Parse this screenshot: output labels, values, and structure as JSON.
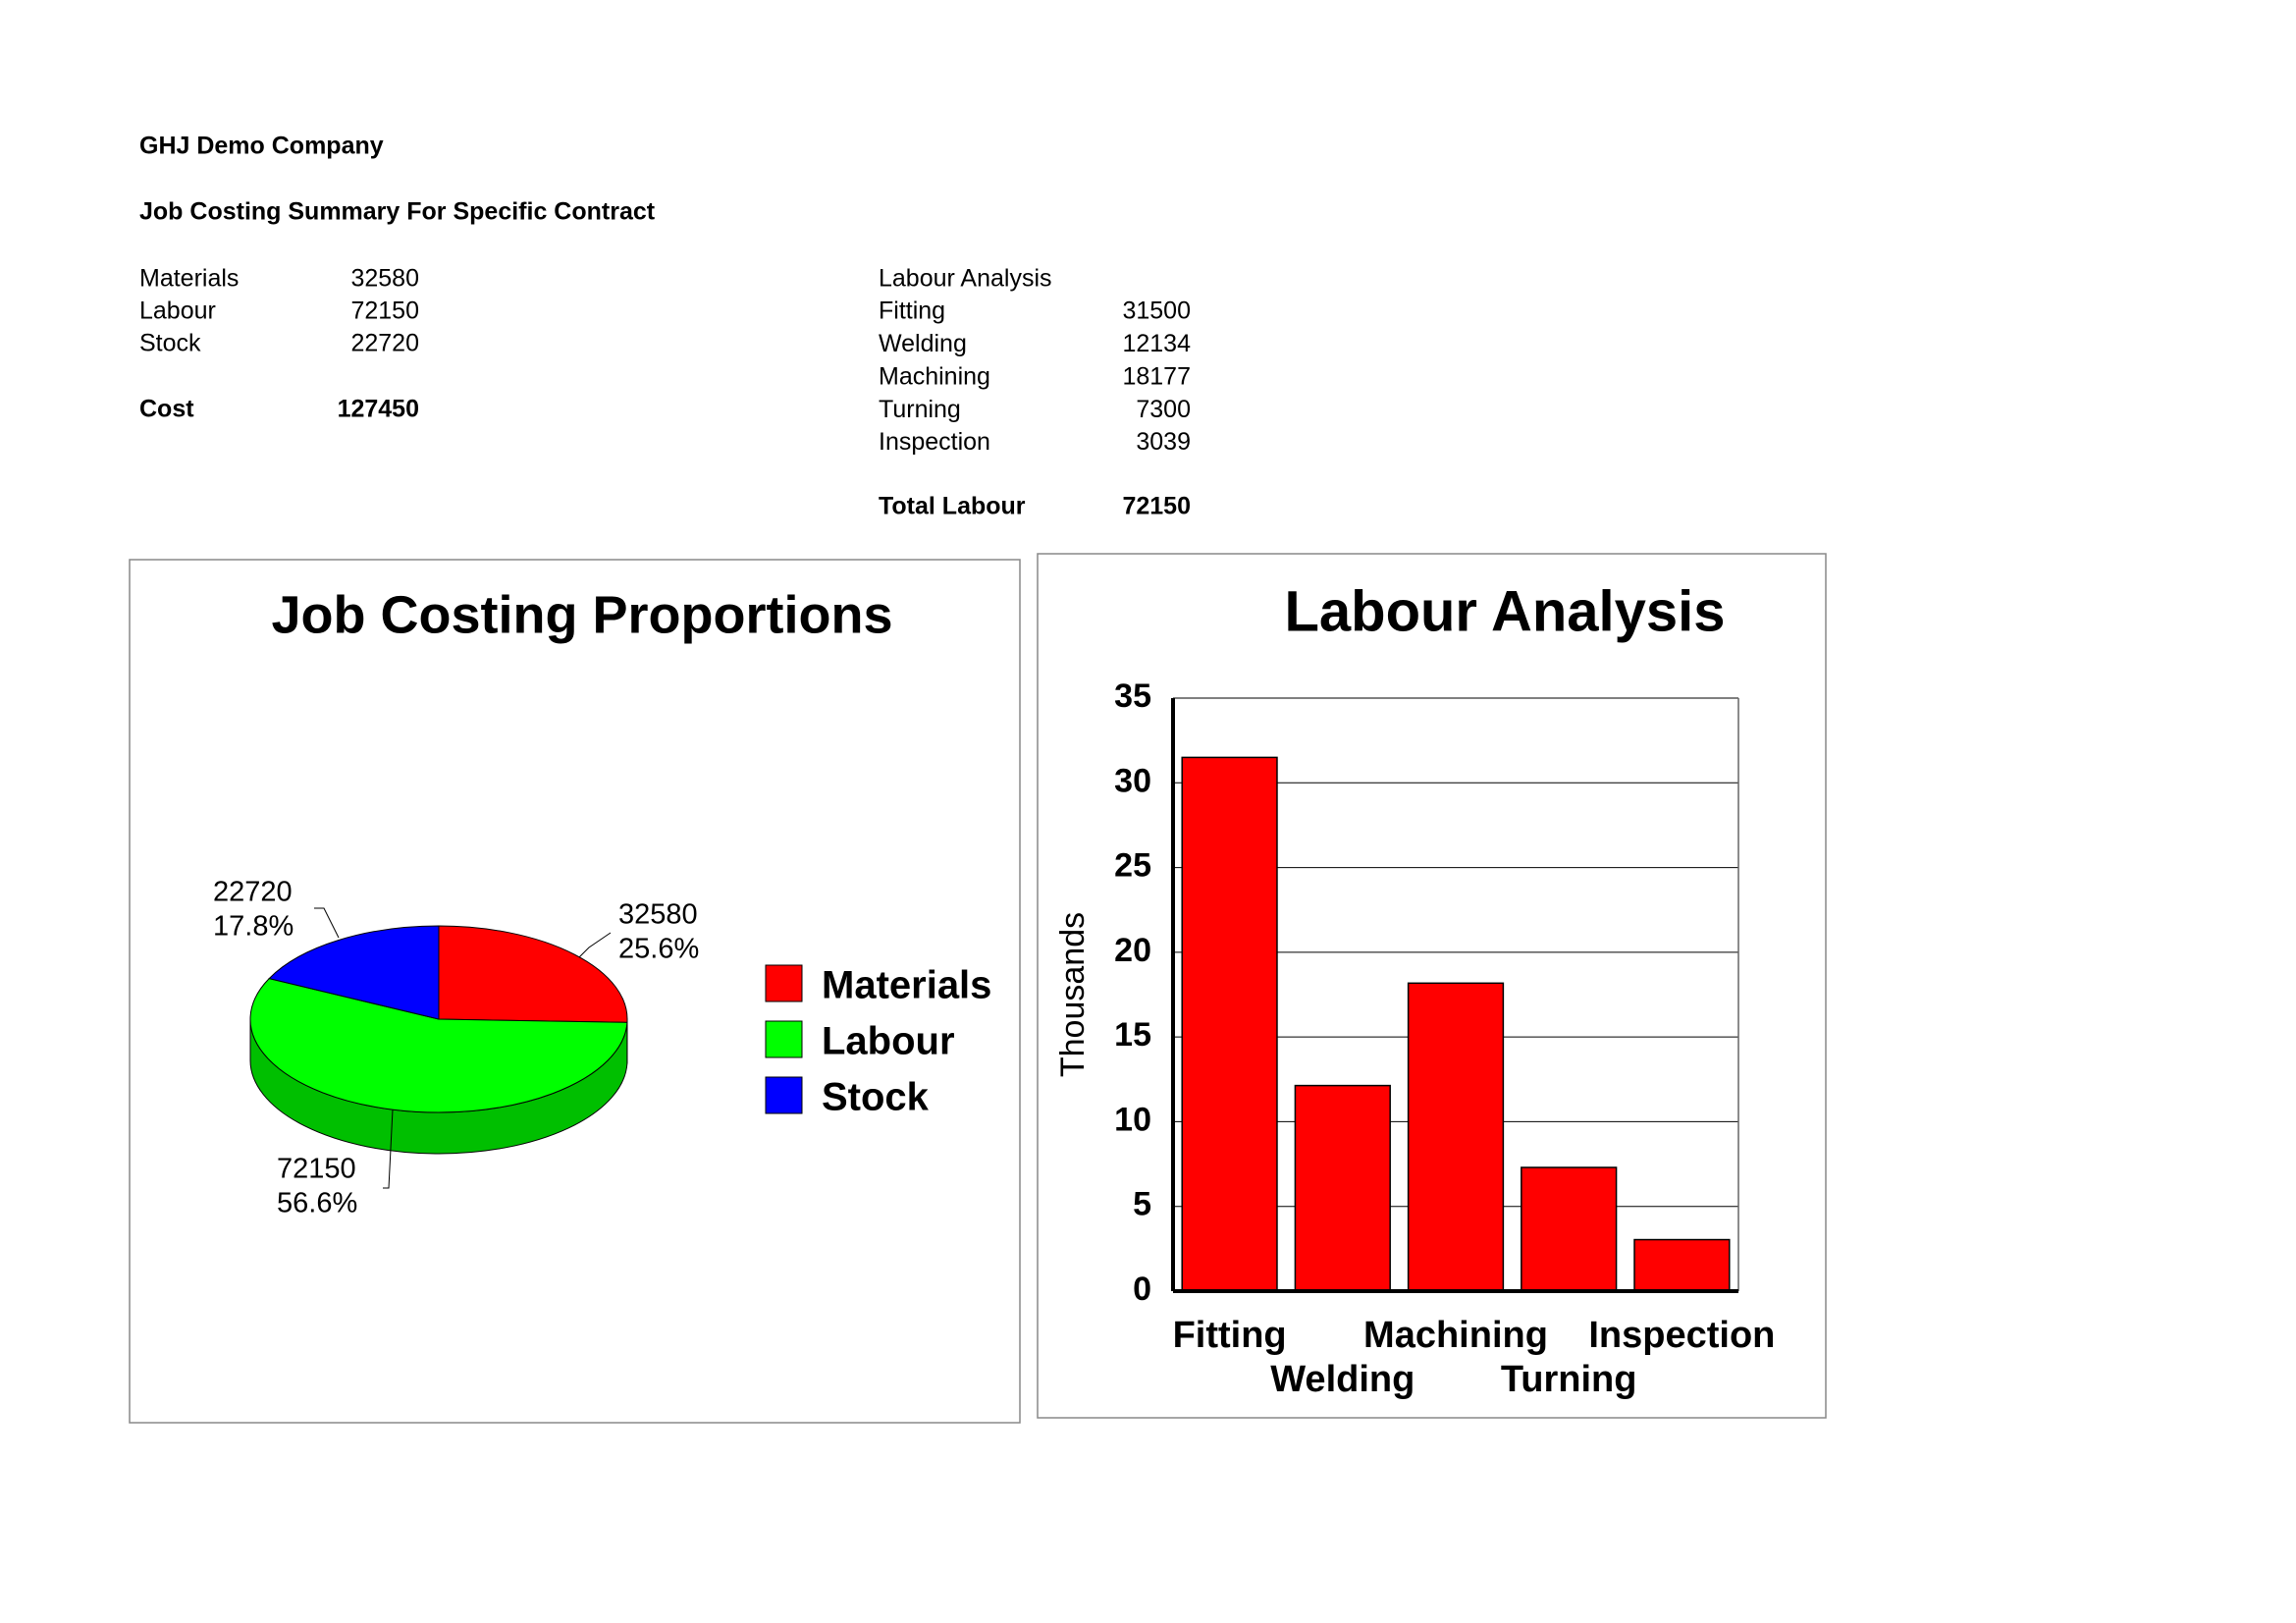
{
  "header": {
    "company": "GHJ Demo Company",
    "title": "Job Costing Summary For Specific Contract"
  },
  "cost_table": {
    "rows": [
      [
        "Materials",
        32580
      ],
      [
        "Labour",
        72150
      ],
      [
        "Stock",
        22720
      ]
    ],
    "total": [
      "Cost",
      127450
    ]
  },
  "labour_table": {
    "title": "Labour Analysis",
    "rows": [
      [
        "Fitting",
        31500
      ],
      [
        "Welding",
        12134
      ],
      [
        "Machining",
        18177
      ],
      [
        "Turning",
        7300
      ],
      [
        "Inspection",
        3039
      ]
    ],
    "total": [
      "Total Labour",
      72150
    ]
  },
  "chart_data": [
    {
      "type": "pie",
      "title": "Job Costing Proportions",
      "categories": [
        "Materials",
        "Labour",
        "Stock"
      ],
      "values": [
        32580,
        72150,
        22720
      ],
      "percent_labels": [
        "25.6%",
        "56.6%",
        "17.8%"
      ],
      "colors": [
        "#ff0000",
        "#00ff00",
        "#0000ff"
      ],
      "legend": "right"
    },
    {
      "type": "bar",
      "title": "Labour Analysis",
      "y_label": "Thousands",
      "categories": [
        "Fitting",
        "Welding",
        "Machining",
        "Turning",
        "Inspection"
      ],
      "values": [
        31.5,
        12.134,
        18.177,
        7.3,
        3.039
      ],
      "color": "#ff0000",
      "ylim": [
        0,
        35
      ],
      "yticks": [
        0,
        5,
        10,
        15,
        20,
        25,
        30,
        35
      ],
      "grid": true
    }
  ]
}
